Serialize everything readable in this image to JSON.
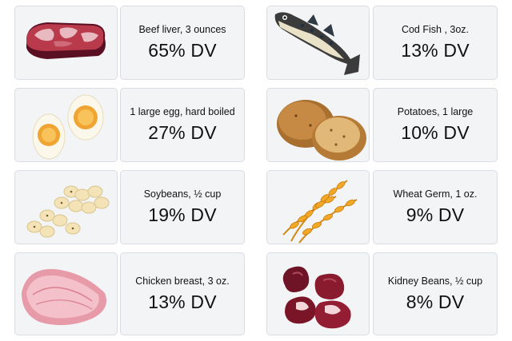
{
  "foods": [
    {
      "label": "Beef liver, 3 ounces",
      "dv": "65% DV",
      "icon": "beef-liver-icon"
    },
    {
      "label": "Cod Fish , 3oz.",
      "dv": "13% DV",
      "icon": "cod-fish-icon"
    },
    {
      "label": "1 large egg, hard boiled",
      "dv": "27% DV",
      "icon": "boiled-egg-icon"
    },
    {
      "label": "Potatoes, 1 large",
      "dv": "10% DV",
      "icon": "potato-icon"
    },
    {
      "label": "Soybeans, ½ cup",
      "dv": "19% DV",
      "icon": "soybeans-icon"
    },
    {
      "label": "Wheat Germ, 1 oz.",
      "dv": "9% DV",
      "icon": "wheat-icon"
    },
    {
      "label": "Chicken breast, 3 oz.",
      "dv": "13% DV",
      "icon": "chicken-breast-icon"
    },
    {
      "label": "Kidney Beans, ½ cup",
      "dv": "8% DV",
      "icon": "kidney-beans-icon"
    }
  ]
}
